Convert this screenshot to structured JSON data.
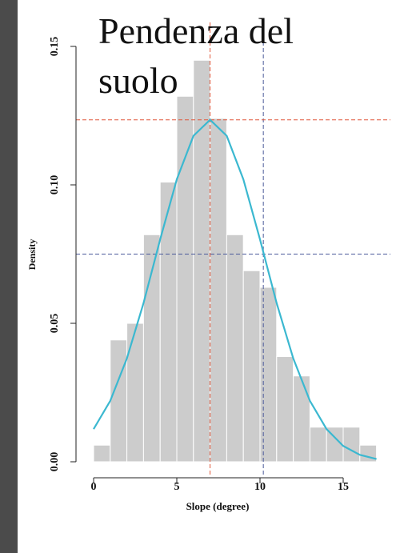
{
  "chart_data": {
    "type": "histogram",
    "title": "Pendenza del suolo",
    "xlabel": "Slope (degree)",
    "ylabel": "Density",
    "bins": [
      0,
      1,
      2,
      3,
      4,
      5,
      6,
      7,
      8,
      9,
      10,
      11,
      12,
      13,
      14,
      15,
      16,
      17
    ],
    "values": [
      0.006,
      0.044,
      0.05,
      0.082,
      0.101,
      0.132,
      0.145,
      0.124,
      0.082,
      0.069,
      0.063,
      0.038,
      0.031,
      0.0125,
      0.0125,
      0.0125,
      0.006
    ],
    "color": "#cccccc",
    "density_curve": {
      "x": [
        0,
        1,
        2,
        3,
        4,
        5,
        6,
        7,
        8,
        9,
        10,
        11,
        12,
        13,
        14,
        15,
        16,
        17
      ],
      "values": [
        0.0118,
        0.022,
        0.0373,
        0.0573,
        0.0803,
        0.102,
        0.1177,
        0.1235,
        0.1177,
        0.102,
        0.0803,
        0.0573,
        0.0373,
        0.022,
        0.0118,
        0.0057,
        0.0025,
        0.001
      ],
      "color": "#3bb8d0"
    },
    "vlines": [
      {
        "value": 7,
        "color": "#e0573a"
      },
      {
        "value": 10.2,
        "color": "#4a5a9a"
      }
    ],
    "hlines": [
      {
        "value": 0.1235,
        "color": "#e0573a"
      },
      {
        "value": 0.075,
        "color": "#4a5a9a"
      }
    ],
    "xlim": [
      0,
      17
    ],
    "ylim": [
      0,
      0.15
    ],
    "xticks": [
      0,
      5,
      10,
      15
    ],
    "yticks": [
      {
        "value": 0,
        "label": "0.00"
      },
      {
        "value": 0.05,
        "label": "0.05"
      },
      {
        "value": 0.1,
        "label": "0.10"
      },
      {
        "value": 0.15,
        "label": "0.15"
      }
    ]
  }
}
